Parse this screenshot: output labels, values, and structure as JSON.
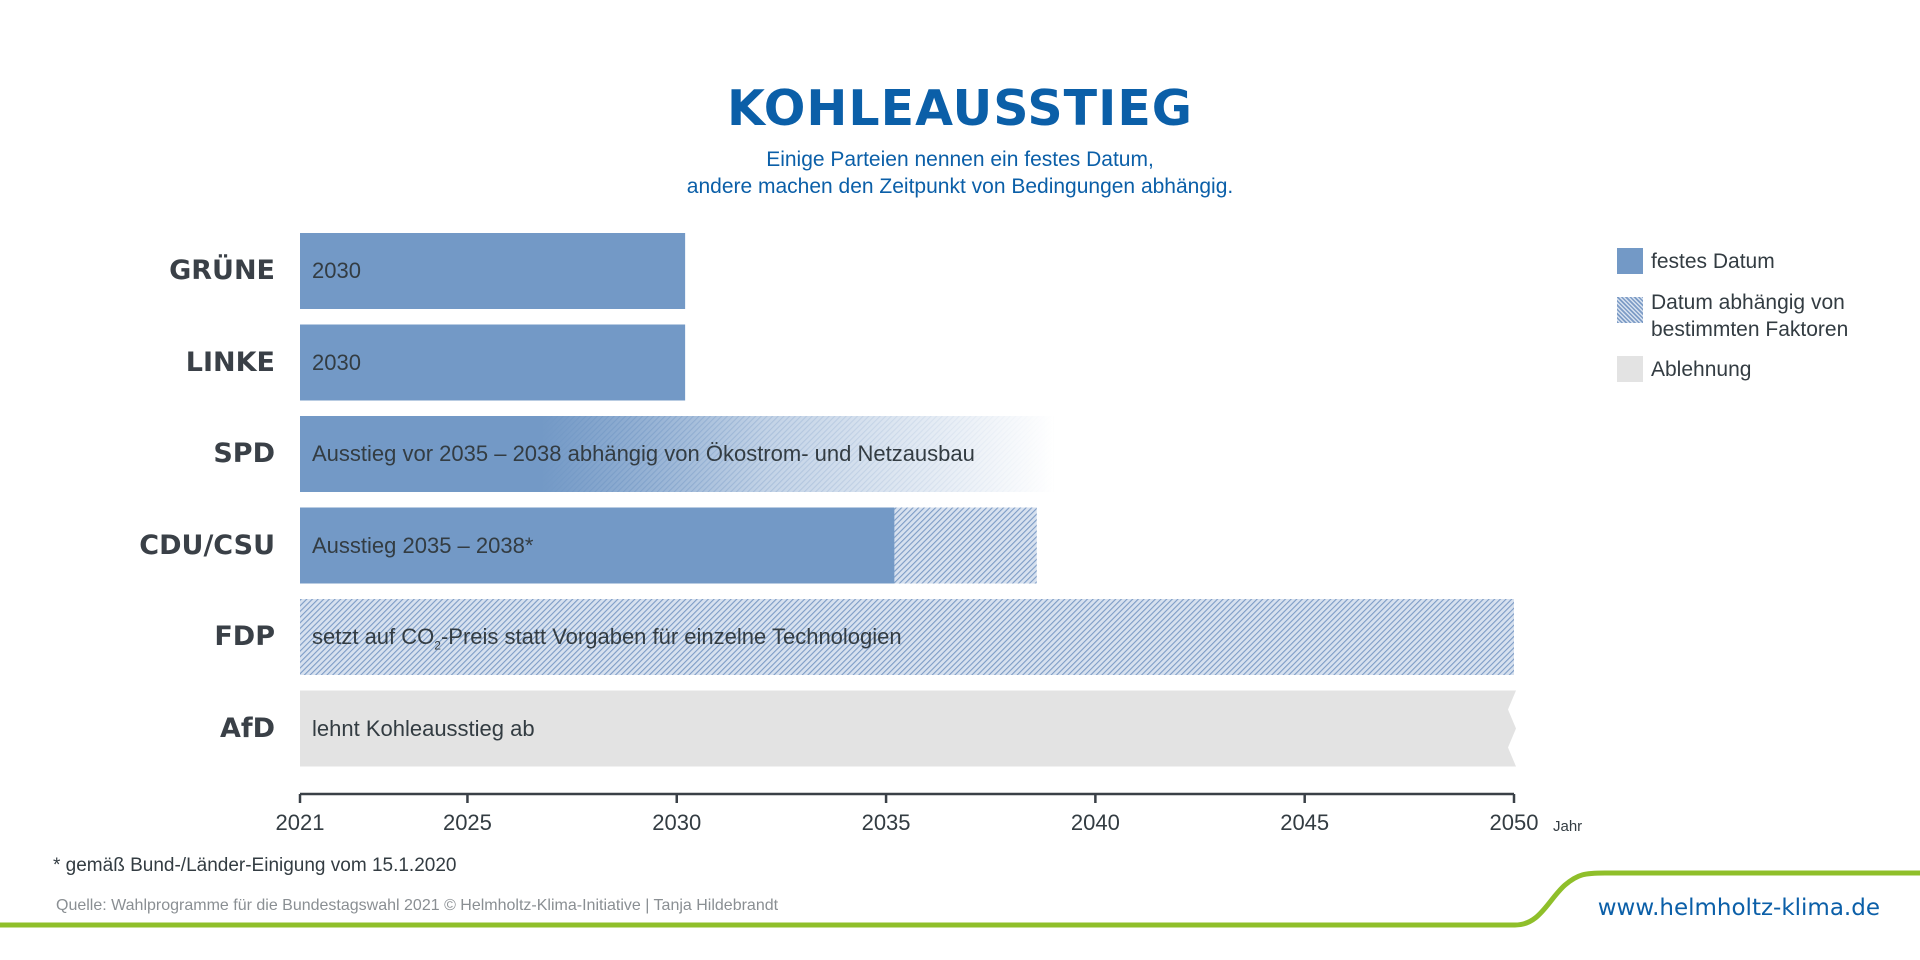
{
  "colors": {
    "fixed": "#7399c6",
    "conditional_base": "#d7e1ef",
    "conditional_hatch": "#7d9cc6",
    "rejection": "#e3e3e3",
    "title": "#0b5fa8",
    "accent_line": "#8fbf2a"
  },
  "chart_data": {
    "type": "bar",
    "orientation": "horizontal",
    "title": "KOHLEAUSSTIEG",
    "subtitle": [
      "Einige Parteien nennen ein festes Datum,",
      "andere machen den Zeitpunkt von Bedingungen abhängig."
    ],
    "xlabel": "Jahr",
    "xlim": [
      2021,
      2050
    ],
    "xticks": [
      2021,
      2025,
      2030,
      2035,
      2040,
      2045,
      2050
    ],
    "legend_position": "right",
    "legend": [
      {
        "key": "fixed",
        "label": "festes Datum"
      },
      {
        "key": "conditional",
        "label": "Datum abhängig von bestimmten Faktoren"
      },
      {
        "key": "rejection",
        "label": "Ablehnung"
      }
    ],
    "categories": [
      "GRÜNE",
      "LINKE",
      "SPD",
      "CDU/CSU",
      "FDP",
      "AfD"
    ],
    "bars": [
      {
        "party": "GRÜNE",
        "label": "2030",
        "label_parts": [
          "2030",
          "",
          ""
        ],
        "segments": [
          {
            "kind": "fixed",
            "start": 2021,
            "end": 2030.2
          }
        ]
      },
      {
        "party": "LINKE",
        "label": "2030",
        "label_parts": [
          "2030",
          "",
          ""
        ],
        "segments": [
          {
            "kind": "fixed",
            "start": 2021,
            "end": 2030.2
          }
        ]
      },
      {
        "party": "SPD",
        "label": "Ausstieg vor 2035 – 2038 abhängig von Ökostrom- und Netzausbau",
        "label_parts": [
          "Ausstieg vor 2035 – 2038 abhängig von Ökostrom- und Netzausbau",
          "",
          ""
        ],
        "segments": [
          {
            "kind": "fixed-fading",
            "start": 2021,
            "end": 2039
          }
        ]
      },
      {
        "party": "CDU/CSU",
        "label": "Ausstieg 2035 – 2038*",
        "label_parts": [
          "Ausstieg 2035 – 2038*",
          "",
          ""
        ],
        "segments": [
          {
            "kind": "fixed",
            "start": 2021,
            "end": 2035.2
          },
          {
            "kind": "conditional",
            "start": 2035.2,
            "end": 2038.6
          }
        ]
      },
      {
        "party": "FDP",
        "label": "setzt auf CO₂-Preis statt Vorgaben für einzelne Technologien",
        "label_parts": [
          "setzt auf CO",
          "2",
          "-Preis statt Vorgaben für einzelne Technologien"
        ],
        "segments": [
          {
            "kind": "conditional",
            "start": 2021,
            "end": 2050
          }
        ]
      },
      {
        "party": "AfD",
        "label": "lehnt Kohleausstieg ab",
        "label_parts": [
          "lehnt Kohleausstieg ab",
          "",
          ""
        ],
        "segments": [
          {
            "kind": "rejection",
            "start": 2021,
            "end": 2050
          }
        ]
      }
    ]
  },
  "footnote": "* gemäß Bund-/Länder-Einigung vom 15.1.2020",
  "source": "Quelle: Wahlprogramme für die Bundestagswahl 2021     © Helmholtz-Klima-Initiative | Tanja Hildebrandt",
  "url": "www.helmholtz-klima.de"
}
